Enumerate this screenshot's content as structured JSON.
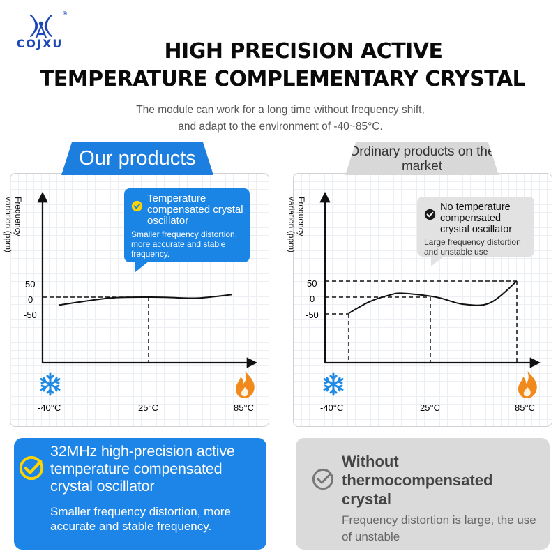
{
  "brand": {
    "name": "COJXU",
    "registered": "®"
  },
  "header": {
    "title_line1": "HIGH PRECISION ACTIVE",
    "title_line2": "TEMPERATURE COMPLEMENTARY CRYSTAL",
    "subtitle_line1": "The module can work for a long time without frequency shift,",
    "subtitle_line2": "and adapt to the environment of -40~85°C."
  },
  "left_panel": {
    "tab_label": "Our products",
    "callout_title": "Temperature compensated crystal oscillator",
    "callout_text": "Smaller frequency distortion, more accurate and stable frequency.",
    "card_title": "32MHz high-precision active temperature compensated crystal oscillator",
    "card_text": "Smaller frequency distortion, more accurate and stable frequency."
  },
  "right_panel": {
    "tab_label": "Ordinary products on the market",
    "callout_title": "No temperature compensated crystal oscillator",
    "callout_text": "Large frequency distortion and unstable use",
    "card_title": "Without thermocompensated crystal",
    "card_text": "Frequency distortion is large, the use of unstable"
  },
  "icons": {
    "cold": "snowflake-icon",
    "hot": "flame-icon",
    "check": "check-circle-icon"
  },
  "colors": {
    "accent_blue": "#1c85e7",
    "neutral_gray": "#dadada",
    "flame": "#f08a1c",
    "brand_blue": "#1c47b8"
  },
  "chart_data": [
    {
      "type": "line",
      "title": "",
      "xlabel": "",
      "ylabel": "Frequency variation (ppm)",
      "x_ticks": [
        "-40°C",
        "25°C",
        "85°C"
      ],
      "y_ticks": [
        "50",
        "0",
        "-50"
      ],
      "x": [
        -40,
        -20,
        0,
        25,
        40,
        60,
        85
      ],
      "y": [
        -25,
        -12,
        -2,
        0,
        -1,
        -3,
        8
      ]
    },
    {
      "type": "line",
      "title": "",
      "xlabel": "",
      "ylabel": "Frequency variation (ppm)",
      "x_ticks": [
        "-40°C",
        "25°C",
        "85°C"
      ],
      "y_ticks": [
        "50",
        "0",
        "-50"
      ],
      "x": [
        -40,
        -25,
        -10,
        0,
        25,
        45,
        65,
        85
      ],
      "y": [
        -50,
        -15,
        6,
        12,
        0,
        -22,
        -18,
        50
      ]
    }
  ]
}
